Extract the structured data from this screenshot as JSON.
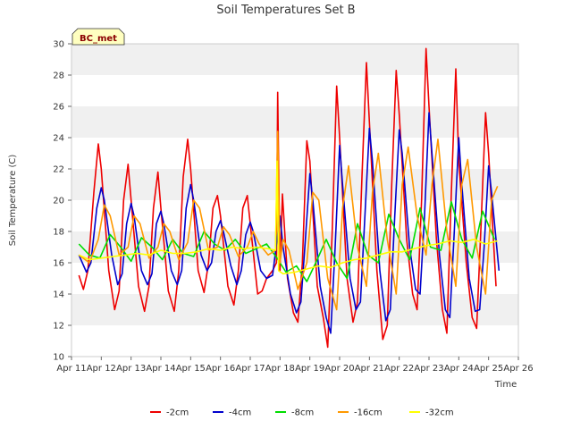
{
  "chart_data": {
    "type": "line",
    "title": "Soil Temperatures Set B",
    "xlabel": "Time",
    "ylabel": "Soil Temperature (C)",
    "ylim": [
      10,
      30
    ],
    "yticks": [
      10,
      12,
      14,
      16,
      18,
      20,
      22,
      24,
      26,
      28,
      30
    ],
    "xlim": [
      0,
      15
    ],
    "xticks": [
      0,
      1,
      2,
      3,
      4,
      5,
      6,
      7,
      8,
      9,
      10,
      11,
      12,
      13,
      14,
      15
    ],
    "xtick_labels": [
      "Apr 11",
      "Apr 12",
      "Apr 13",
      "Apr 14",
      "Apr 15",
      "Apr 16",
      "Apr 17",
      "Apr 18",
      "Apr 19",
      "Apr 20",
      "Apr 21",
      "Apr 22",
      "Apr 23",
      "Apr 24",
      "Apr 25",
      "Apr 26"
    ],
    "x_unit": "days after Apr 11",
    "grid": "horizontal bands",
    "legend_position": "bottom",
    "badge": "BC_met",
    "series": [
      {
        "name": "-2cm",
        "color": "#ee0000",
        "x": [
          0.25,
          0.4,
          0.55,
          0.75,
          0.9,
          1.0,
          1.25,
          1.45,
          1.6,
          1.75,
          1.9,
          2.0,
          2.25,
          2.45,
          2.6,
          2.75,
          2.9,
          3.0,
          3.25,
          3.45,
          3.6,
          3.75,
          3.9,
          4.0,
          4.25,
          4.45,
          4.6,
          4.75,
          4.9,
          5.0,
          5.25,
          5.45,
          5.6,
          5.75,
          5.9,
          6.0,
          6.25,
          6.4,
          6.55,
          6.75,
          6.88,
          6.92,
          7.0,
          7.08,
          7.25,
          7.45,
          7.6,
          7.75,
          7.9,
          8.0,
          8.25,
          8.45,
          8.6,
          8.75,
          8.9,
          9.0,
          9.25,
          9.45,
          9.6,
          9.75,
          9.9,
          10.0,
          10.25,
          10.45,
          10.6,
          10.75,
          10.9,
          11.0,
          11.25,
          11.45,
          11.6,
          11.75,
          11.9,
          12.0,
          12.25,
          12.45,
          12.6,
          12.75,
          12.9,
          13.0,
          13.25,
          13.45,
          13.6,
          13.75,
          13.9,
          14.0,
          14.25
        ],
        "y": [
          15.2,
          14.3,
          15.5,
          20.5,
          23.6,
          22.0,
          15.5,
          13.0,
          14.2,
          20.0,
          22.3,
          20.0,
          14.5,
          12.9,
          14.5,
          19.5,
          21.8,
          19.5,
          14.2,
          12.9,
          15.5,
          21.5,
          23.9,
          22.0,
          15.5,
          14.1,
          16.0,
          19.5,
          20.3,
          19.0,
          14.5,
          13.3,
          15.5,
          19.5,
          20.3,
          18.5,
          14.0,
          14.2,
          15.0,
          15.5,
          16.0,
          26.9,
          15.5,
          20.4,
          15.0,
          12.8,
          12.2,
          16.0,
          23.8,
          22.5,
          14.5,
          12.5,
          10.6,
          18.0,
          27.3,
          24.0,
          15.0,
          12.2,
          13.5,
          21.5,
          28.8,
          25.0,
          15.5,
          11.1,
          12.0,
          21.0,
          28.3,
          25.5,
          17.5,
          14.0,
          13.0,
          20.0,
          29.7,
          26.0,
          17.5,
          13.0,
          11.5,
          20.5,
          28.4,
          22.5,
          16.0,
          12.5,
          11.8,
          18.5,
          25.6,
          23.0,
          14.5
        ]
      },
      {
        "name": "-4cm",
        "color": "#0000cc",
        "x": [
          0.25,
          0.5,
          0.65,
          0.85,
          1.0,
          1.1,
          1.35,
          1.55,
          1.7,
          1.85,
          2.0,
          2.1,
          2.35,
          2.55,
          2.7,
          2.85,
          3.0,
          3.1,
          3.35,
          3.55,
          3.7,
          3.85,
          4.0,
          4.1,
          4.35,
          4.55,
          4.7,
          4.85,
          5.0,
          5.1,
          5.35,
          5.55,
          5.7,
          5.85,
          6.0,
          6.1,
          6.35,
          6.55,
          6.75,
          6.9,
          7.0,
          7.1,
          7.35,
          7.55,
          7.7,
          7.85,
          8.0,
          8.1,
          8.35,
          8.55,
          8.7,
          8.85,
          9.0,
          9.1,
          9.35,
          9.55,
          9.7,
          9.85,
          10.0,
          10.1,
          10.35,
          10.55,
          10.7,
          10.85,
          11.0,
          11.1,
          11.35,
          11.55,
          11.7,
          11.85,
          12.0,
          12.1,
          12.35,
          12.55,
          12.7,
          12.85,
          13.0,
          13.1,
          13.35,
          13.55,
          13.7,
          13.85,
          14.0,
          14.1,
          14.35
        ],
        "y": [
          16.5,
          15.4,
          16.0,
          19.5,
          20.8,
          20.0,
          16.5,
          14.6,
          15.3,
          18.5,
          19.8,
          19.0,
          15.5,
          14.6,
          15.3,
          18.5,
          19.3,
          18.5,
          15.5,
          14.6,
          15.5,
          19.5,
          21.0,
          20.0,
          16.5,
          15.5,
          16.0,
          18.0,
          18.7,
          18.0,
          15.8,
          14.6,
          15.5,
          17.8,
          18.6,
          18.0,
          15.5,
          15.0,
          15.2,
          17.5,
          19.0,
          17.0,
          14.0,
          12.8,
          13.5,
          17.5,
          21.7,
          20.0,
          14.5,
          12.5,
          11.5,
          17.0,
          23.5,
          21.0,
          15.0,
          13.0,
          13.5,
          19.0,
          24.6,
          22.5,
          15.5,
          12.3,
          13.0,
          19.0,
          24.5,
          23.0,
          17.0,
          14.3,
          14.0,
          19.0,
          25.6,
          23.0,
          16.5,
          13.0,
          12.5,
          18.0,
          24.0,
          21.0,
          15.0,
          12.9,
          13.0,
          17.0,
          22.2,
          20.5,
          15.5
        ]
      },
      {
        "name": "-8cm",
        "color": "#00dd00",
        "x": [
          0.25,
          0.6,
          0.95,
          1.3,
          1.65,
          2.0,
          2.35,
          2.7,
          3.05,
          3.4,
          3.75,
          4.1,
          4.45,
          4.8,
          5.15,
          5.5,
          5.85,
          6.2,
          6.55,
          6.9,
          7.2,
          7.55,
          7.9,
          8.2,
          8.55,
          8.9,
          9.25,
          9.6,
          9.95,
          10.3,
          10.65,
          11.0,
          11.35,
          11.7,
          12.05,
          12.4,
          12.75,
          13.1,
          13.45,
          13.8,
          14.2
        ],
        "y": [
          17.2,
          16.5,
          16.3,
          17.8,
          17.0,
          16.1,
          17.6,
          17.0,
          16.2,
          17.5,
          16.6,
          16.4,
          18.0,
          17.2,
          16.8,
          17.5,
          16.6,
          16.9,
          17.2,
          16.3,
          15.4,
          15.8,
          14.8,
          16.0,
          17.5,
          16.0,
          15.0,
          18.5,
          16.5,
          16.0,
          19.1,
          17.5,
          16.2,
          19.5,
          17.0,
          16.8,
          19.9,
          17.5,
          16.3,
          19.3,
          17.5
        ]
      },
      {
        "name": "-16cm",
        "color": "#ff9900",
        "x": [
          0.25,
          0.6,
          0.9,
          1.1,
          1.3,
          1.6,
          1.9,
          2.1,
          2.3,
          2.6,
          2.9,
          3.1,
          3.3,
          3.6,
          3.9,
          4.1,
          4.3,
          4.6,
          4.9,
          5.1,
          5.3,
          5.6,
          5.9,
          6.1,
          6.3,
          6.6,
          6.85,
          6.92,
          7.0,
          7.1,
          7.3,
          7.6,
          7.9,
          8.1,
          8.3,
          8.6,
          8.9,
          9.1,
          9.3,
          9.6,
          9.9,
          10.1,
          10.3,
          10.6,
          10.9,
          11.1,
          11.3,
          11.6,
          11.9,
          12.1,
          12.3,
          12.6,
          12.9,
          13.1,
          13.3,
          13.6,
          13.9,
          14.1,
          14.3
        ],
        "y": [
          16.5,
          16.0,
          17.5,
          19.7,
          19.0,
          16.5,
          17.0,
          19.0,
          18.5,
          16.3,
          17.0,
          18.5,
          18.0,
          16.2,
          17.3,
          20.0,
          19.5,
          16.8,
          17.0,
          18.3,
          17.8,
          16.4,
          17.0,
          18.0,
          17.2,
          16.5,
          16.8,
          24.4,
          16.0,
          17.5,
          16.8,
          14.3,
          16.0,
          20.5,
          20.0,
          15.0,
          13.0,
          19.5,
          22.2,
          17.0,
          14.5,
          20.5,
          23.0,
          17.5,
          14.0,
          21.0,
          23.4,
          19.0,
          16.5,
          21.0,
          23.9,
          18.0,
          14.5,
          21.0,
          22.6,
          17.0,
          14.0,
          20.0,
          20.9
        ]
      },
      {
        "name": "-32cm",
        "color": "#ffff00",
        "x": [
          0.25,
          0.6,
          1.0,
          1.4,
          1.8,
          2.2,
          2.6,
          3.0,
          3.4,
          3.8,
          4.2,
          4.6,
          5.0,
          5.4,
          5.8,
          6.2,
          6.6,
          6.85,
          6.9,
          6.95,
          7.1,
          7.5,
          7.9,
          8.3,
          8.7,
          9.1,
          9.5,
          9.9,
          10.3,
          10.7,
          11.1,
          11.5,
          11.9,
          12.3,
          12.7,
          13.1,
          13.5,
          13.9,
          14.3
        ],
        "y": [
          16.5,
          16.2,
          16.3,
          16.4,
          16.5,
          16.6,
          16.5,
          16.8,
          16.6,
          16.6,
          16.7,
          16.9,
          16.8,
          17.0,
          16.9,
          17.0,
          16.9,
          16.8,
          22.5,
          15.5,
          15.3,
          15.4,
          15.6,
          15.8,
          15.7,
          16.0,
          16.2,
          16.3,
          16.5,
          16.7,
          16.7,
          16.9,
          17.1,
          17.2,
          17.4,
          17.3,
          17.5,
          17.2,
          17.4
        ]
      }
    ]
  }
}
